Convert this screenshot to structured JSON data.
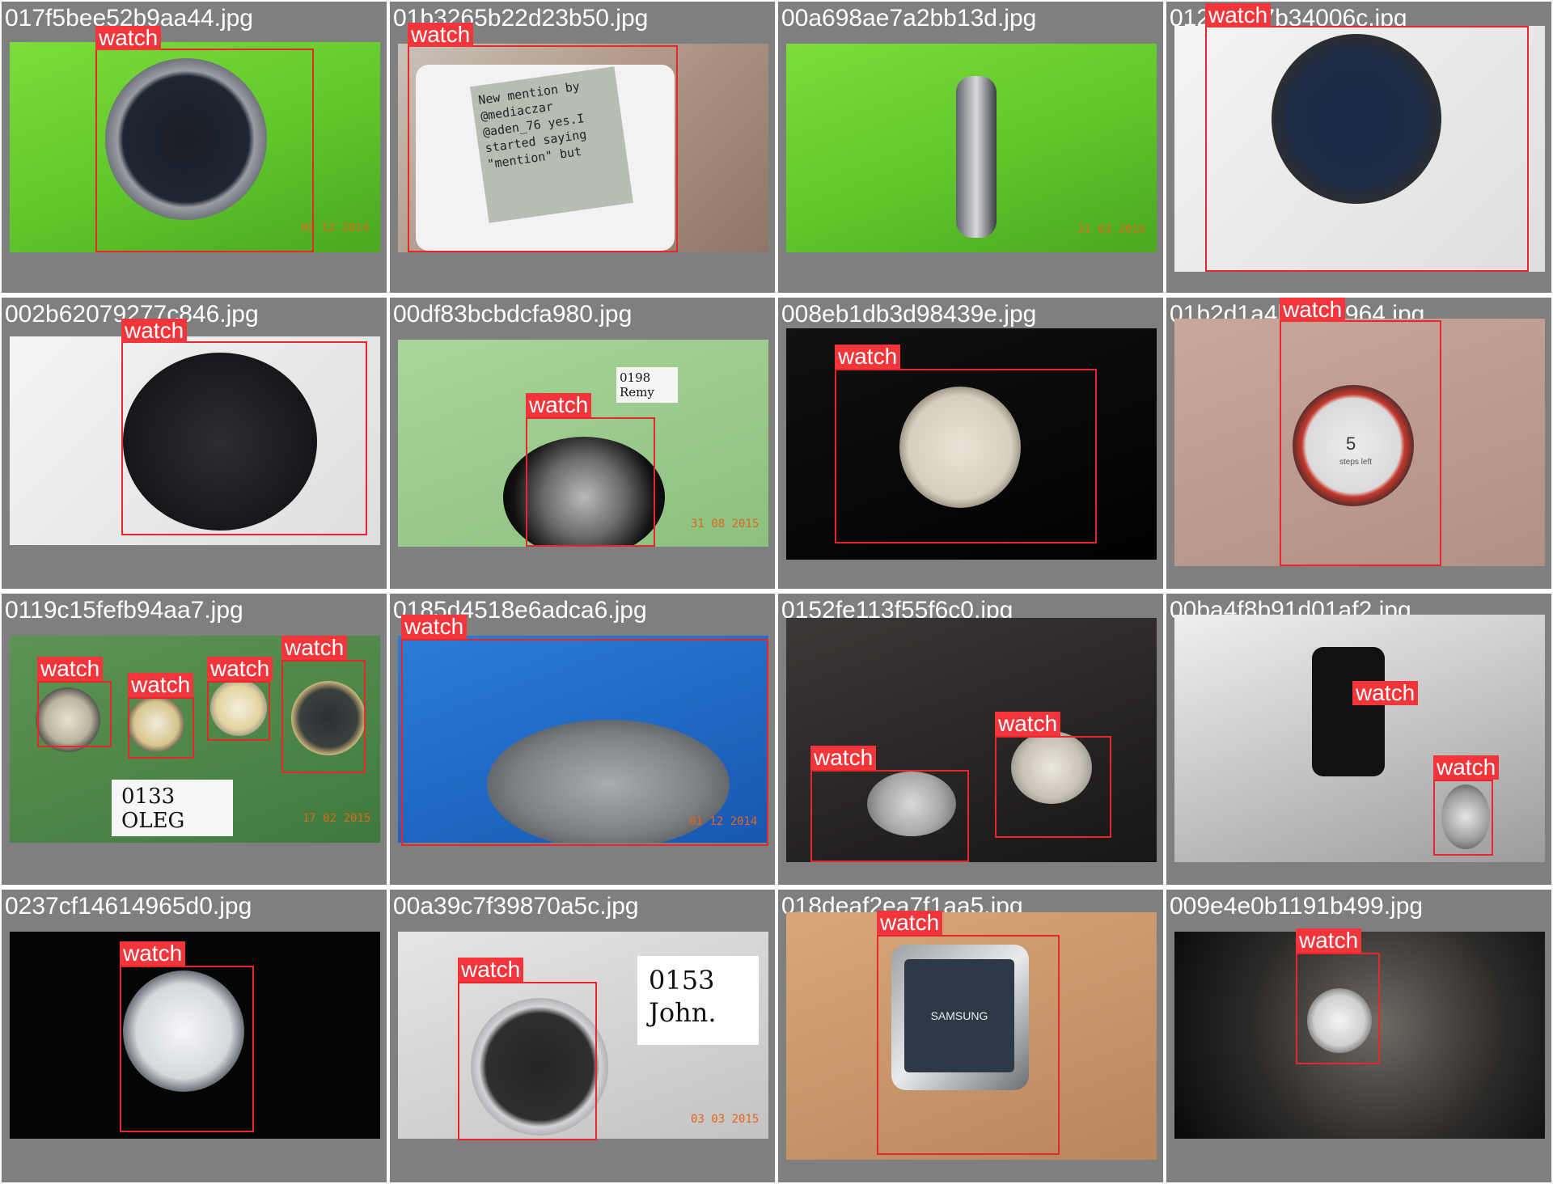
{
  "gallery": {
    "tiles": [
      {
        "filename": "017f5bee52b9aa44.jpg",
        "labels": [
          "watch"
        ],
        "date_stamp": "08 12 2014"
      },
      {
        "filename": "01b3265b22d23b50.jpg",
        "labels": [
          "watch"
        ],
        "screen_text": "New mention by @mediaczar @aden_76 yes.I started saying \"mention\" but"
      },
      {
        "filename": "00a698ae7a2bb13d.jpg",
        "labels": [],
        "date_stamp": "31 03 2015"
      },
      {
        "filename": "012bc3c7b34006c.jpg",
        "labels": [
          "watch"
        ]
      },
      {
        "filename": "002b62079277c846.jpg",
        "labels": [
          "watch"
        ]
      },
      {
        "filename": "00df83bcbdcfa980.jpg",
        "labels": [
          "watch"
        ],
        "note_text": "0198 Remy",
        "date_stamp": "31 08 2015"
      },
      {
        "filename": "008eb1db3d98439e.jpg",
        "labels": [
          "watch"
        ]
      },
      {
        "filename": "01b2d1a4b8d73964.jpg",
        "labels": [
          "watch"
        ],
        "watch_screen_number": "5",
        "watch_screen_caption": "steps left"
      },
      {
        "filename": "0119c15fefb94aa7.jpg",
        "labels": [
          "watch",
          "watch",
          "watch",
          "watch"
        ],
        "note_text": "0133 OLEG",
        "date_stamp": "17 02 2015"
      },
      {
        "filename": "0185d4518e6adca6.jpg",
        "labels": [
          "watch"
        ],
        "date_stamp": "01 12 2014"
      },
      {
        "filename": "0152fe113f55f6c0.jpg",
        "labels": [
          "watch",
          "watch"
        ]
      },
      {
        "filename": "00ba4f8b91d01af2.jpg",
        "labels": [
          "watch",
          "watch"
        ]
      },
      {
        "filename": "0237cf14614965d0.jpg",
        "labels": [
          "watch"
        ]
      },
      {
        "filename": "00a39c7f39870a5c.jpg",
        "labels": [
          "watch"
        ],
        "note_text": "0153 John.",
        "date_stamp": "03 03 2015"
      },
      {
        "filename": "018deaf2ea7f1aa5.jpg",
        "labels": [
          "watch"
        ],
        "brand_text": "SAMSUNG"
      },
      {
        "filename": "009e4e0b1191b499.jpg",
        "labels": [
          "watch"
        ]
      }
    ]
  },
  "colors": {
    "tile_background": "#7f7f7f",
    "bbox_stroke": "#e8272b",
    "label_fill": "#f2353b",
    "label_text": "#ffffff"
  }
}
